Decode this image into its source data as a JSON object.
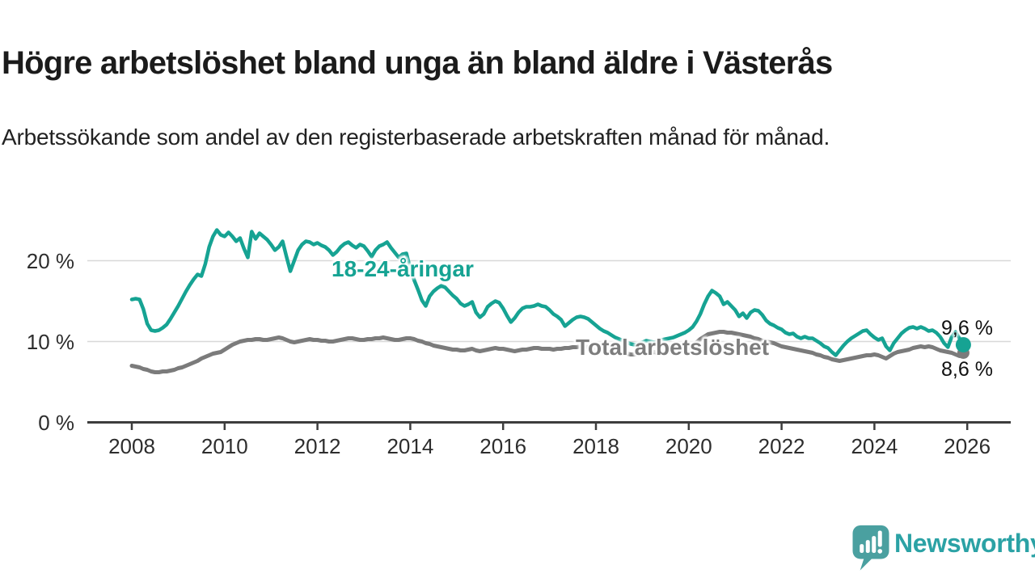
{
  "header": {
    "title": "Högre arbetslöshet bland unga än bland äldre i Västerås",
    "subtitle": "Arbetssökande som andel av den registerbaserade arbetskraften månad för månad."
  },
  "chart_data": {
    "type": "line",
    "title": "Högre arbetslöshet bland unga än bland äldre i Västerås",
    "subtitle": "Arbetssökande som andel av den registerbaserade arbetskraften månad för månad.",
    "unit": "%",
    "grid": "horizontal",
    "legend_position": "inline-labels",
    "x_axis": {
      "ticks": [
        2008,
        2010,
        2012,
        2014,
        2016,
        2018,
        2020,
        2022,
        2024,
        2026
      ],
      "range_years": [
        2007.0,
        2026.9
      ]
    },
    "y_axis": {
      "ticks": [
        {
          "value": 0,
          "label": "0 %"
        },
        {
          "value": 10,
          "label": "10 %"
        },
        {
          "value": 20,
          "label": "20 %"
        }
      ],
      "range": [
        0,
        26
      ]
    },
    "colors": {
      "youth": "#16a393",
      "total": "#7b7b7b",
      "grid": "#d8d8d8",
      "axis": "#3d3d3d"
    },
    "series": [
      {
        "name": "18-24-åringar",
        "color": "#16a393",
        "end_label": "9,6 %",
        "end_value": 9.6,
        "start_year": 2008,
        "step_months": 1,
        "values": [
          15.2,
          15.3,
          15.2,
          14.0,
          12.2,
          11.4,
          11.3,
          11.4,
          11.7,
          12.1,
          12.8,
          13.6,
          14.4,
          15.3,
          16.2,
          17.0,
          17.7,
          18.3,
          18.1,
          19.6,
          21.7,
          23.0,
          23.8,
          23.2,
          23.0,
          23.5,
          23.0,
          22.4,
          22.8,
          21.5,
          20.4,
          23.6,
          22.7,
          23.4,
          23.0,
          22.6,
          22.0,
          21.3,
          21.7,
          22.4,
          20.5,
          18.7,
          20.0,
          21.3,
          22.0,
          22.4,
          22.3,
          22.0,
          22.2,
          21.9,
          21.7,
          21.3,
          20.7,
          21.1,
          21.7,
          22.1,
          22.3,
          21.9,
          21.6,
          22.0,
          21.8,
          21.2,
          20.5,
          21.3,
          21.8,
          22.0,
          22.3,
          21.6,
          21.0,
          20.4,
          20.8,
          20.9,
          19.0,
          17.6,
          16.4,
          15.1,
          14.4,
          15.6,
          16.2,
          16.6,
          16.9,
          16.7,
          16.2,
          15.7,
          15.3,
          14.7,
          14.4,
          14.6,
          14.9,
          13.6,
          13.0,
          13.4,
          14.3,
          14.7,
          15.0,
          14.8,
          14.1,
          13.2,
          12.4,
          12.9,
          13.6,
          14.1,
          14.3,
          14.3,
          14.4,
          14.6,
          14.4,
          14.3,
          13.9,
          13.4,
          13.1,
          12.7,
          11.9,
          12.3,
          12.7,
          13.0,
          13.1,
          13.0,
          12.8,
          12.4,
          12.0,
          11.6,
          11.3,
          11.1,
          10.8,
          10.5,
          10.3,
          10.1,
          9.9,
          9.7,
          9.6,
          9.7,
          9.9,
          10.1,
          10.0,
          9.9,
          10.0,
          10.2,
          10.3,
          10.4,
          10.5,
          10.7,
          10.9,
          11.1,
          11.4,
          11.8,
          12.5,
          13.4,
          14.6,
          15.6,
          16.3,
          16.0,
          15.6,
          14.6,
          14.9,
          14.4,
          13.9,
          13.1,
          13.5,
          12.9,
          13.6,
          13.9,
          13.8,
          13.3,
          12.6,
          12.2,
          12.0,
          11.7,
          11.5,
          11.1,
          10.9,
          11.0,
          10.6,
          10.4,
          10.6,
          10.4,
          10.4,
          10.1,
          9.8,
          9.4,
          9.2,
          8.7,
          8.3,
          8.9,
          9.5,
          10.0,
          10.4,
          10.7,
          11.0,
          11.3,
          11.4,
          10.9,
          10.5,
          10.2,
          10.4,
          9.4,
          8.9,
          9.8,
          10.4,
          11.0,
          11.4,
          11.7,
          11.8,
          11.6,
          11.8,
          11.6,
          11.3,
          11.4,
          11.1,
          10.6,
          9.8,
          9.3,
          10.6,
          11.2,
          10.4,
          9.6
        ]
      },
      {
        "name": "Total arbetslöshet",
        "color": "#7b7b7b",
        "end_label": "8,6 %",
        "end_value": 8.6,
        "start_year": 2008,
        "step_months": 1,
        "values": [
          7.0,
          6.9,
          6.8,
          6.6,
          6.5,
          6.3,
          6.2,
          6.2,
          6.3,
          6.3,
          6.4,
          6.5,
          6.7,
          6.8,
          7.0,
          7.2,
          7.4,
          7.6,
          7.9,
          8.1,
          8.3,
          8.5,
          8.6,
          8.7,
          9.0,
          9.3,
          9.6,
          9.8,
          10.0,
          10.1,
          10.2,
          10.2,
          10.3,
          10.3,
          10.2,
          10.2,
          10.3,
          10.4,
          10.5,
          10.4,
          10.2,
          10.0,
          9.9,
          10.0,
          10.1,
          10.2,
          10.3,
          10.2,
          10.2,
          10.1,
          10.1,
          10.0,
          10.0,
          10.1,
          10.2,
          10.3,
          10.4,
          10.4,
          10.3,
          10.2,
          10.2,
          10.3,
          10.3,
          10.4,
          10.4,
          10.5,
          10.4,
          10.3,
          10.2,
          10.2,
          10.3,
          10.4,
          10.4,
          10.3,
          10.1,
          10.0,
          9.8,
          9.7,
          9.5,
          9.4,
          9.3,
          9.2,
          9.1,
          9.0,
          9.0,
          8.9,
          8.9,
          9.0,
          9.1,
          8.9,
          8.8,
          8.9,
          9.0,
          9.1,
          9.2,
          9.1,
          9.1,
          9.0,
          8.9,
          8.8,
          8.9,
          9.0,
          9.0,
          9.1,
          9.2,
          9.2,
          9.1,
          9.1,
          9.1,
          9.0,
          9.1,
          9.1,
          9.2,
          9.2,
          9.3,
          9.3,
          9.4,
          9.4,
          9.3,
          9.2,
          9.1,
          9.0,
          8.9,
          8.8,
          8.7,
          8.6,
          8.6,
          8.5,
          8.5,
          8.4,
          8.4,
          8.5,
          8.5,
          8.6,
          8.6,
          8.7,
          8.6,
          8.6,
          8.7,
          8.7,
          8.8,
          8.8,
          8.9,
          9.0,
          9.2,
          9.5,
          9.9,
          10.3,
          10.6,
          10.9,
          11.0,
          11.1,
          11.2,
          11.2,
          11.1,
          11.1,
          11.0,
          10.9,
          10.8,
          10.7,
          10.6,
          10.4,
          10.3,
          10.1,
          10.0,
          9.9,
          9.8,
          9.6,
          9.4,
          9.3,
          9.2,
          9.1,
          9.0,
          8.9,
          8.8,
          8.7,
          8.6,
          8.4,
          8.3,
          8.1,
          8.0,
          7.8,
          7.7,
          7.6,
          7.7,
          7.8,
          7.9,
          8.0,
          8.1,
          8.2,
          8.3,
          8.3,
          8.4,
          8.3,
          8.1,
          7.9,
          8.2,
          8.5,
          8.7,
          8.8,
          8.9,
          9.0,
          9.2,
          9.3,
          9.4,
          9.3,
          9.4,
          9.3,
          9.1,
          8.9,
          8.8,
          8.7,
          8.6,
          8.4,
          8.2,
          8.6
        ]
      }
    ]
  },
  "footer": {
    "brand": "Newsworthy"
  }
}
